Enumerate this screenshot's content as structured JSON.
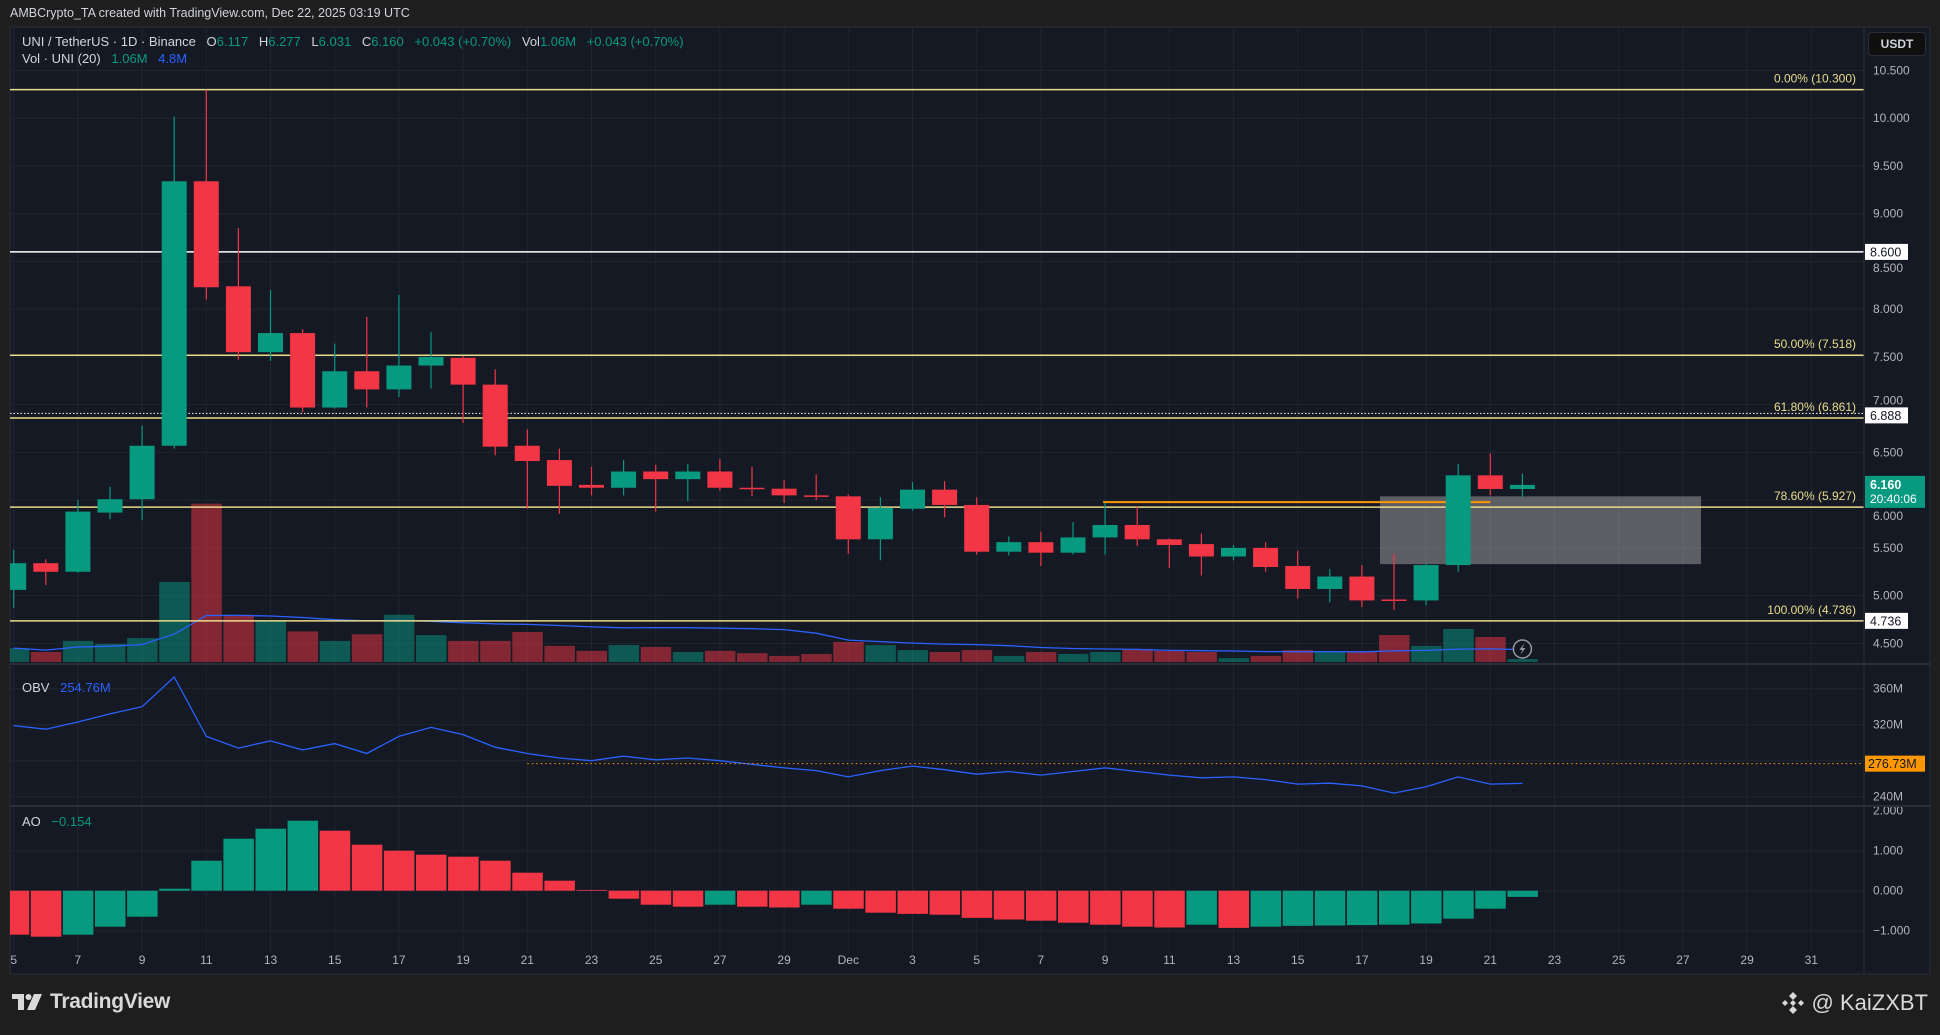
{
  "header": {
    "attribution": "AMBCrypto_TA created with TradingView.com, Dec 22, 2025 03:19 UTC"
  },
  "legend": {
    "symbol": "UNI / TetherUS · 1D · Binance",
    "o_label": "O",
    "o": "6.117",
    "h_label": "H",
    "h": "6.277",
    "l_label": "L",
    "l": "6.031",
    "c_label": "C",
    "c": "6.160",
    "change": "+0.043 (+0.70%)",
    "vol_label": "Vol",
    "vol": "1.06M",
    "vol_change": "+0.043 (+0.70%)"
  },
  "volume_legend": {
    "label": "Vol · UNI (20)",
    "value": "1.06M",
    "ma": "4.8M"
  },
  "obv_legend": {
    "label": "OBV",
    "value": "254.76M"
  },
  "ao_legend": {
    "label": "AO",
    "value": "−0.154"
  },
  "currency_button": "USDT",
  "footer": {
    "brand": "TradingView",
    "credit": "@ KaiZXBT"
  },
  "colors": {
    "background": "#151924",
    "grid": "#21252f",
    "up": "#089981",
    "down": "#f23645",
    "fib": "#e9dc8c",
    "obv": "#2962ff",
    "vol_ma": "#2962ff",
    "horizontal_line": "#ffffff",
    "trend_line": "#ff9800",
    "axis_text": "#b2b5be"
  },
  "chart_data": {
    "type": "candlestick",
    "symbol": "UNI / TetherUS",
    "interval": "1D",
    "exchange": "Binance",
    "y_axis": {
      "unit": "USDT",
      "range": [
        4.4,
        10.6
      ],
      "ticks": [
        "10.500",
        "10.000",
        "9.500",
        "9.000",
        "8.500",
        "8.000",
        "7.500",
        "7.000",
        "6.500",
        "6.000",
        "5.500",
        "5.000",
        "4.500"
      ]
    },
    "x_axis": {
      "ticks": [
        {
          "label": "5",
          "date": "2025-11-05"
        },
        {
          "label": "7",
          "date": "2025-11-07"
        },
        {
          "label": "9",
          "date": "2025-11-09"
        },
        {
          "label": "11",
          "date": "2025-11-11"
        },
        {
          "label": "13",
          "date": "2025-11-13"
        },
        {
          "label": "15",
          "date": "2025-11-15"
        },
        {
          "label": "17",
          "date": "2025-11-17"
        },
        {
          "label": "19",
          "date": "2025-11-19"
        },
        {
          "label": "21",
          "date": "2025-11-21"
        },
        {
          "label": "23",
          "date": "2025-11-23"
        },
        {
          "label": "25",
          "date": "2025-11-25"
        },
        {
          "label": "27",
          "date": "2025-11-27"
        },
        {
          "label": "29",
          "date": "2025-11-29"
        },
        {
          "label": "Dec",
          "date": "2025-12-01"
        },
        {
          "label": "3",
          "date": "2025-12-03"
        },
        {
          "label": "5",
          "date": "2025-12-05"
        },
        {
          "label": "7",
          "date": "2025-12-07"
        },
        {
          "label": "9",
          "date": "2025-12-09"
        },
        {
          "label": "11",
          "date": "2025-12-11"
        },
        {
          "label": "13",
          "date": "2025-12-13"
        },
        {
          "label": "15",
          "date": "2025-12-15"
        },
        {
          "label": "17",
          "date": "2025-12-17"
        },
        {
          "label": "19",
          "date": "2025-12-19"
        },
        {
          "label": "21",
          "date": "2025-12-21"
        },
        {
          "label": "23",
          "date": "2025-12-23"
        },
        {
          "label": "25",
          "date": "2025-12-25"
        },
        {
          "label": "27",
          "date": "2025-12-27"
        },
        {
          "label": "29",
          "date": "2025-12-29"
        },
        {
          "label": "31",
          "date": "2025-12-31"
        }
      ]
    },
    "candle_fields": [
      "date",
      "open",
      "high",
      "low",
      "close",
      "volume_millions"
    ],
    "candles": [
      [
        "2025-11-05",
        5.06,
        5.48,
        4.87,
        5.34,
        5.0
      ],
      [
        "2025-11-06",
        5.34,
        5.38,
        5.11,
        5.25,
        3.6
      ],
      [
        "2025-11-07",
        5.25,
        6.0,
        5.24,
        5.88,
        7.6
      ],
      [
        "2025-11-08",
        5.87,
        6.14,
        5.8,
        6.01,
        6.5
      ],
      [
        "2025-11-09",
        6.01,
        6.78,
        5.79,
        6.57,
        8.6
      ],
      [
        "2025-11-10",
        6.57,
        10.02,
        6.54,
        9.34,
        28.8
      ],
      [
        "2025-11-11",
        9.34,
        10.3,
        8.1,
        8.23,
        57.0
      ],
      [
        "2025-11-12",
        8.24,
        8.85,
        7.47,
        7.55,
        17.0
      ],
      [
        "2025-11-13",
        7.55,
        8.2,
        7.46,
        7.75,
        15.0
      ],
      [
        "2025-11-14",
        7.75,
        7.79,
        6.92,
        6.97,
        11.0
      ],
      [
        "2025-11-15",
        6.97,
        7.64,
        6.96,
        7.35,
        7.6
      ],
      [
        "2025-11-16",
        7.35,
        7.92,
        6.97,
        7.16,
        10.0
      ],
      [
        "2025-11-17",
        7.16,
        8.15,
        7.08,
        7.41,
        17.0
      ],
      [
        "2025-11-18",
        7.41,
        7.76,
        7.17,
        7.5,
        9.7
      ],
      [
        "2025-11-19",
        7.49,
        7.51,
        6.81,
        7.21,
        7.6
      ],
      [
        "2025-11-20",
        7.21,
        7.37,
        6.47,
        6.56,
        7.6
      ],
      [
        "2025-11-21",
        6.57,
        6.74,
        5.91,
        6.41,
        10.8
      ],
      [
        "2025-11-22",
        6.42,
        6.54,
        5.86,
        6.15,
        5.8
      ],
      [
        "2025-11-23",
        6.16,
        6.35,
        6.05,
        6.13,
        4.0
      ],
      [
        "2025-11-24",
        6.13,
        6.42,
        6.05,
        6.3,
        6.1
      ],
      [
        "2025-11-25",
        6.3,
        6.37,
        5.88,
        6.22,
        5.4
      ],
      [
        "2025-11-26",
        6.22,
        6.38,
        5.99,
        6.3,
        3.6
      ],
      [
        "2025-11-27",
        6.3,
        6.43,
        6.1,
        6.13,
        4.0
      ],
      [
        "2025-11-28",
        6.13,
        6.35,
        6.04,
        6.12,
        3.2
      ],
      [
        "2025-11-29",
        6.12,
        6.21,
        5.97,
        6.05,
        2.2
      ],
      [
        "2025-11-30",
        6.05,
        6.27,
        6.0,
        6.04,
        2.9
      ],
      [
        "2025-12-01",
        6.04,
        6.06,
        5.44,
        5.59,
        7.2
      ],
      [
        "2025-12-02",
        5.59,
        6.03,
        5.37,
        5.92,
        6.1
      ],
      [
        "2025-12-03",
        5.91,
        6.19,
        5.89,
        6.11,
        4.3
      ],
      [
        "2025-12-04",
        6.11,
        6.2,
        5.82,
        5.95,
        3.6
      ],
      [
        "2025-12-05",
        5.95,
        6.03,
        5.43,
        5.46,
        4.3
      ],
      [
        "2025-12-06",
        5.46,
        5.62,
        5.42,
        5.56,
        2.2
      ],
      [
        "2025-12-07",
        5.56,
        5.67,
        5.31,
        5.45,
        3.6
      ],
      [
        "2025-12-08",
        5.45,
        5.77,
        5.43,
        5.61,
        2.9
      ],
      [
        "2025-12-09",
        5.61,
        5.97,
        5.43,
        5.74,
        3.6
      ],
      [
        "2025-12-10",
        5.74,
        5.93,
        5.52,
        5.59,
        4.7
      ],
      [
        "2025-12-11",
        5.59,
        5.6,
        5.29,
        5.53,
        4.0
      ],
      [
        "2025-12-12",
        5.54,
        5.65,
        5.21,
        5.41,
        3.6
      ],
      [
        "2025-12-13",
        5.41,
        5.53,
        5.37,
        5.5,
        1.4
      ],
      [
        "2025-12-14",
        5.5,
        5.56,
        5.25,
        5.3,
        2.2
      ],
      [
        "2025-12-15",
        5.31,
        5.47,
        4.97,
        5.07,
        4.3
      ],
      [
        "2025-12-16",
        5.07,
        5.28,
        4.93,
        5.2,
        3.6
      ],
      [
        "2025-12-17",
        5.2,
        5.32,
        4.88,
        4.95,
        3.6
      ],
      [
        "2025-12-18",
        4.96,
        5.44,
        4.85,
        4.95,
        9.7
      ],
      [
        "2025-12-19",
        4.95,
        5.34,
        4.9,
        5.32,
        5.8
      ],
      [
        "2025-12-20",
        5.32,
        6.38,
        5.25,
        6.26,
        11.9
      ],
      [
        "2025-12-21",
        6.26,
        6.49,
        6.05,
        6.117,
        9.0
      ],
      [
        "2025-12-22",
        6.117,
        6.277,
        6.031,
        6.16,
        1.06
      ]
    ],
    "current_price": {
      "value": "6.160",
      "countdown": "20:40:06"
    },
    "fib_levels": [
      {
        "label": "0.00% (10.300)",
        "price": 10.3
      },
      {
        "label": "50.00% (7.518)",
        "price": 7.518
      },
      {
        "label": "61.80% (6.861)",
        "price": 6.861
      },
      {
        "label": "78.60% (5.927)",
        "price": 5.927
      },
      {
        "label": "100.00% (4.736)",
        "price": 4.736
      }
    ],
    "horizontal_lines": [
      {
        "label": "8.600",
        "price": 8.6,
        "style": "solid"
      },
      {
        "label": "6.888",
        "price": 6.888,
        "style": "dotted"
      },
      {
        "label": "4.736",
        "price": 4.736,
        "style": "none"
      }
    ],
    "trend_line": {
      "price": 5.98,
      "from": "2025-12-09",
      "to": "2025-12-21"
    },
    "zone": {
      "from": "2025-12-18",
      "to": "2025-12-28",
      "top": 6.04,
      "bottom": 5.33
    },
    "obv": {
      "unit": "M",
      "range": [
        230,
        380
      ],
      "ticks": [
        "360M",
        "320M",
        "240M"
      ],
      "marker": {
        "label": "276.73M",
        "value": 276.73,
        "from": "2025-11-21"
      },
      "values": [
        319,
        315,
        323,
        332,
        340,
        373,
        307,
        294,
        302,
        292,
        299,
        288,
        307,
        317,
        309,
        295,
        288,
        283,
        280,
        285,
        281,
        283,
        280,
        276,
        272,
        269,
        262,
        269,
        274,
        270,
        265,
        268,
        264,
        268,
        272,
        268,
        264,
        261,
        262,
        259,
        254,
        255,
        252,
        244,
        251,
        262,
        254,
        254.76
      ]
    },
    "ao": {
      "range": [
        -1.2,
        2.0
      ],
      "ticks": [
        "2.000",
        "1.000",
        "0.000",
        "−1.000"
      ],
      "values": [
        -1.1,
        -1.15,
        -1.1,
        -0.9,
        -0.65,
        0.05,
        0.75,
        1.3,
        1.55,
        1.75,
        1.5,
        1.15,
        1.0,
        0.9,
        0.85,
        0.75,
        0.45,
        0.25,
        0.02,
        -0.2,
        -0.35,
        -0.4,
        -0.35,
        -0.4,
        -0.42,
        -0.35,
        -0.45,
        -0.55,
        -0.58,
        -0.6,
        -0.68,
        -0.72,
        -0.75,
        -0.8,
        -0.85,
        -0.9,
        -0.92,
        -0.85,
        -0.93,
        -0.9,
        -0.88,
        -0.87,
        -0.86,
        -0.85,
        -0.82,
        -0.7,
        -0.45,
        -0.154
      ]
    }
  }
}
